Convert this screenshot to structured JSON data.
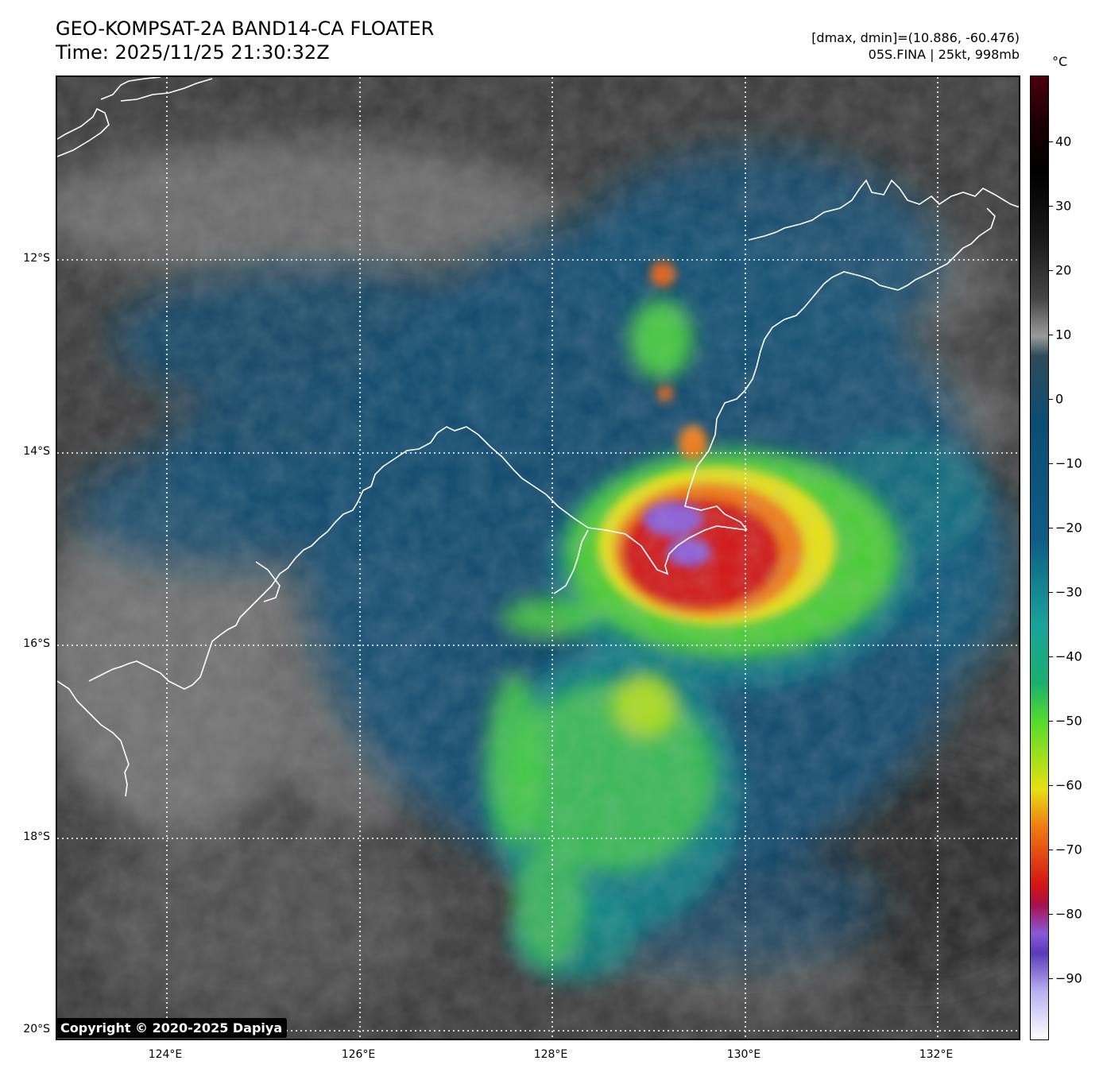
{
  "header": {
    "title_line1": "GEO-KOMPSAT-2A BAND14-CA FLOATER",
    "title_line2": "Time: 2025/11/25 21:30:32Z",
    "info_line1": "[dmax, dmin]=(10.886, -60.476)",
    "info_line2": "05S.FINA | 25kt, 998mb"
  },
  "map": {
    "latitude_labels": [
      "12°S",
      "14°S",
      "16°S",
      "18°S",
      "20°S"
    ],
    "longitude_labels": [
      "124°E",
      "126°E",
      "128°E",
      "130°E",
      "132°E"
    ],
    "copyright": "Copyright © 2020-2025 Dapiya"
  },
  "colorbar": {
    "unit": "°C",
    "tick_labels": [
      "40",
      "30",
      "20",
      "10",
      "0",
      "−10",
      "−20",
      "−30",
      "−40",
      "−50",
      "−60",
      "−70",
      "−80",
      "−90"
    ],
    "colors": {
      "warm_gray": "#5a5a5a",
      "ocean_blue": "#0a4d73",
      "teal": "#1aa39a",
      "green": "#55dc2c",
      "yellow": "#e6e114",
      "orange": "#f07a12",
      "red": "#d21414",
      "purple": "#8a5ad8",
      "dark_red": "#4a000c"
    }
  }
}
